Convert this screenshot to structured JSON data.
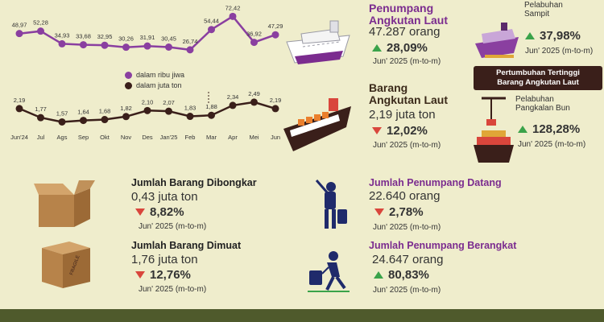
{
  "colors": {
    "background": "#efedcc",
    "passenger_series": "#8a3fa0",
    "goods_series": "#3a1f1a",
    "up": "#3aa34a",
    "down": "#d9463c",
    "title_purple": "#7b2c8f",
    "footer": "#4f5a2c"
  },
  "chart_data": {
    "type": "line",
    "categories": [
      "Jun'24",
      "Jul",
      "Ags",
      "Sep",
      "Okt",
      "Nov",
      "Des",
      "Jan'25",
      "Feb",
      "Mar",
      "Apr",
      "Mei",
      "Jun"
    ],
    "series": [
      {
        "name": "dalam ribu jiwa",
        "values": [
          48.97,
          52.28,
          34.93,
          33.68,
          32.95,
          30.26,
          31.91,
          30.45,
          26.74,
          54.44,
          72.42,
          36.92,
          47.29
        ],
        "labels": [
          "48,97",
          "52,28",
          "34,93",
          "33,68",
          "32,95",
          "30,26",
          "31,91",
          "30,45",
          "26,74",
          "54,44",
          "72,42",
          "36,92",
          "47,29"
        ]
      },
      {
        "name": "dalam juta ton",
        "values": [
          2.19,
          1.77,
          1.57,
          1.64,
          1.68,
          1.82,
          2.1,
          2.07,
          1.83,
          1.88,
          2.34,
          2.49,
          2.19
        ],
        "labels": [
          "2,19",
          "1,77",
          "1,57",
          "1,64",
          "1,68",
          "1,82",
          "2,10",
          "2,07",
          "1,83",
          "1,88",
          "2,34",
          "2,49",
          "2,19"
        ]
      }
    ],
    "legend_position": "center-right"
  },
  "passenger": {
    "title_line1": "Penumpang",
    "title_line2": "Angkutan Laut",
    "value": "47.287 orang",
    "pct": "28,09%",
    "period": "Jun' 2025 (m-to-m)"
  },
  "goods": {
    "title_line1": "Barang",
    "title_line2": "Angkutan Laut",
    "value": "2,19 juta ton",
    "pct": "12,02%",
    "period": "Jun' 2025 (m-to-m)"
  },
  "sampit": {
    "name_line1": "Pelabuhan",
    "name_line2": "Sampit",
    "pct": "37,98%",
    "period": "Jun' 2025 (m-to-m)"
  },
  "badge": {
    "line1": "Pertumbuhan Tertinggi",
    "line2": "Barang Angkutan Laut"
  },
  "pangkalan": {
    "name_line1": "Pelabuhan",
    "name_line2": "Pangkalan Bun",
    "pct": "128,28%",
    "period": "Jun' 2025 (m-to-m)"
  },
  "unloaded": {
    "title": "Jumlah Barang Dibongkar",
    "value": "0,43 juta ton",
    "pct": "8,82%",
    "period": "Jun' 2025 (m-to-m)"
  },
  "loaded": {
    "title": "Jumlah Barang Dimuat",
    "value": "1,76 juta ton",
    "pct": "12,76%",
    "period": "Jun' 2025 (m-to-m)",
    "box_text": "FRAGILE"
  },
  "arrive": {
    "title": "Jumlah Penumpang Datang",
    "value": "22.640 orang",
    "pct": "2,78%",
    "period": "Jun' 2025 (m-to-m)"
  },
  "depart": {
    "title": "Jumlah Penumpang Berangkat",
    "value": "24.647 orang",
    "pct": "80,83%",
    "period": "Jun' 2025 (m-to-m)"
  }
}
